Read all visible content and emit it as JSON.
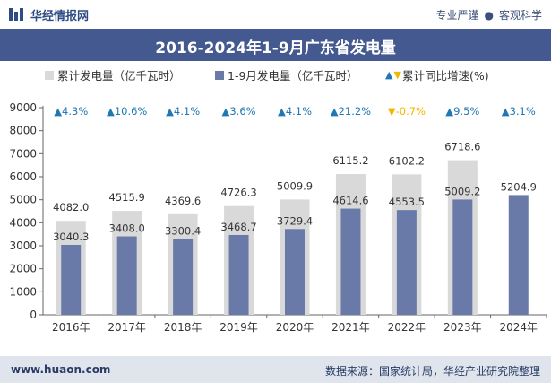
{
  "header": {
    "brand": "华经情报网",
    "tagline_left": "专业严谨",
    "tagline_right": "客观科学"
  },
  "title": "2016-2024年1-9月广东省发电量",
  "legend": {
    "total_label": "累计发电量（亿千瓦时）",
    "period_label": "1-9月发电量（亿千瓦时）",
    "growth_label": "累计同比增速(%)"
  },
  "colors": {
    "total_bar": "#d9d9d9",
    "period_bar": "#6a7aa8",
    "growth_up": "#1f78b4",
    "growth_down": "#f2b600",
    "title_bg": "#44598f"
  },
  "chart_data": {
    "type": "bar",
    "categories": [
      "2016年",
      "2017年",
      "2018年",
      "2019年",
      "2020年",
      "2021年",
      "2022年",
      "2023年",
      "2024年"
    ],
    "series": [
      {
        "name": "累计发电量（亿千瓦时）",
        "values": [
          4082.0,
          4515.9,
          4369.6,
          4726.3,
          5009.9,
          6115.2,
          6102.2,
          6718.6,
          null
        ],
        "labels": [
          "4082.0",
          "4515.9",
          "4369.6",
          "4726.3",
          "5009.9",
          "6115.2",
          "6102.2",
          "6718.6",
          ""
        ]
      },
      {
        "name": "1-9月发电量（亿千瓦时）",
        "values": [
          3040.3,
          3408.0,
          3300.4,
          3468.7,
          3729.4,
          4614.6,
          4553.5,
          5009.2,
          5204.9
        ],
        "labels": [
          "3040.3",
          "3408.0",
          "3300.4",
          "3468.7",
          "3729.4",
          "4614.6",
          "4553.5",
          "5009.2",
          "5204.9"
        ]
      },
      {
        "name": "累计同比增速(%)",
        "values": [
          4.3,
          10.6,
          4.1,
          3.6,
          4.1,
          21.2,
          -0.7,
          9.5,
          3.1
        ],
        "labels": [
          "▲4.3%",
          "▲10.6%",
          "▲4.1%",
          "▲3.6%",
          "▲4.1%",
          "▲21.2%",
          "▼-0.7%",
          "▲9.5%",
          "▲3.1%"
        ]
      }
    ],
    "ylim": [
      0,
      9000
    ],
    "yticks": [
      0,
      1000,
      2000,
      3000,
      4000,
      5000,
      6000,
      7000,
      8000,
      9000
    ],
    "grid": false,
    "legend_position": "top"
  },
  "footer": {
    "website": "www.huaon.com",
    "source": "数据来源：国家统计局，华经产业研究院整理"
  }
}
